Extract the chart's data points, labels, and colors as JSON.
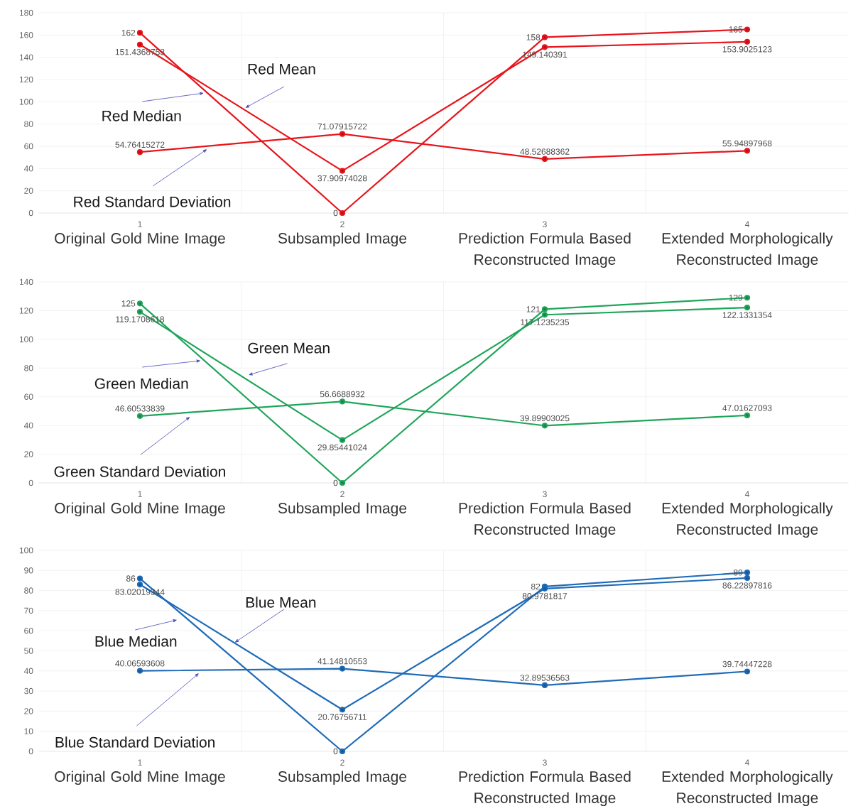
{
  "chart_data": [
    {
      "type": "line",
      "x": [
        1,
        2,
        3,
        4
      ],
      "xlim": [
        0.5,
        4.5
      ],
      "xticks": [
        1,
        2,
        3,
        4
      ],
      "ylim": [
        0,
        180
      ],
      "yticks": [
        0,
        20,
        40,
        60,
        80,
        100,
        120,
        140,
        160,
        180
      ],
      "grid": true,
      "marker": "circle",
      "data_labels": true,
      "annotations": [
        "Original Gold Mine Image",
        "Subsampled Image",
        "Prediction Formula Based Reconstructed Image",
        "Extended Morphologically Reconstructed Image"
      ],
      "series": [
        {
          "name": "Red Median",
          "color": "#e8141c",
          "values": [
            162,
            0,
            158,
            165
          ]
        },
        {
          "name": "Red Mean",
          "color": "#e8141c",
          "values": [
            151.4368753,
            37.90974028,
            149.140391,
            153.9025123
          ]
        },
        {
          "name": "Red Standard Deviation",
          "color": "#e8141c",
          "values": [
            54.76415272,
            71.07915722,
            48.52688362,
            55.94897968
          ]
        }
      ]
    },
    {
      "type": "line",
      "x": [
        1,
        2,
        3,
        4
      ],
      "xlim": [
        0.5,
        4.5
      ],
      "xticks": [
        1,
        2,
        3,
        4
      ],
      "ylim": [
        0,
        140
      ],
      "yticks": [
        0,
        20,
        40,
        60,
        80,
        100,
        120,
        140
      ],
      "grid": true,
      "marker": "circle",
      "data_labels": true,
      "annotations": [
        "Original Gold Mine Image",
        "Subsampled Image",
        "Prediction Formula Based Reconstructed Image",
        "Extended Morphologically Reconstructed Image"
      ],
      "series": [
        {
          "name": "Green Median",
          "color": "#1fa55a",
          "values": [
            125,
            0,
            121,
            129
          ]
        },
        {
          "name": "Green Mean",
          "color": "#1fa55a",
          "values": [
            119.1708618,
            29.85441024,
            117.1235235,
            122.1331354
          ]
        },
        {
          "name": "Green Standard Deviation",
          "color": "#1fa55a",
          "values": [
            46.60533839,
            56.6688932,
            39.89903025,
            47.01627093
          ]
        }
      ]
    },
    {
      "type": "line",
      "x": [
        1,
        2,
        3,
        4
      ],
      "xlim": [
        0.5,
        4.5
      ],
      "xticks": [
        1,
        2,
        3,
        4
      ],
      "ylim": [
        0,
        100
      ],
      "yticks": [
        0,
        10,
        20,
        30,
        40,
        50,
        60,
        70,
        80,
        90,
        100
      ],
      "grid": true,
      "marker": "circle",
      "data_labels": true,
      "annotations": [
        "Original Gold Mine Image",
        "Subsampled Image",
        "Prediction Formula Based Reconstructed Image",
        "Extended Morphologically Reconstructed Image"
      ],
      "series": [
        {
          "name": "Blue Median",
          "color": "#1f6bb8",
          "values": [
            86,
            0,
            82,
            89
          ]
        },
        {
          "name": "Blue Mean",
          "color": "#1f6bb8",
          "values": [
            83.02019344,
            20.76756711,
            80.9781817,
            86.22897816
          ]
        },
        {
          "name": "Blue Standard Deviation",
          "color": "#1f6bb8",
          "values": [
            40.06593608,
            41.14810553,
            32.89536563,
            39.74447228
          ]
        }
      ]
    }
  ]
}
